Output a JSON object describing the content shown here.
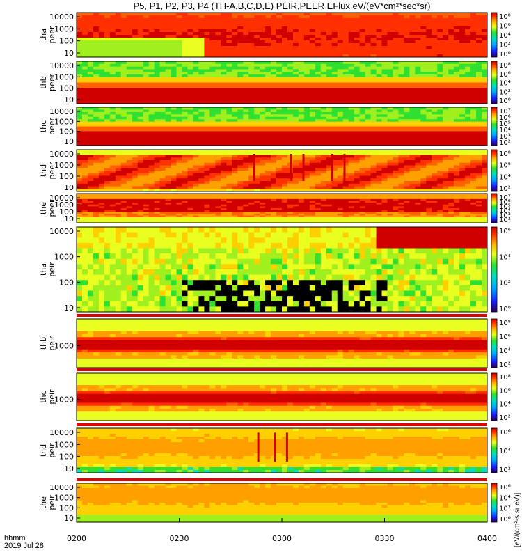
{
  "chart_data": {
    "type": "heatmap",
    "title": "P5, P1, P2, P3, P4 (TH-A,B,C,D,E) PEIR,PEER EFlux eV/(eV*cm²*sec*sr)",
    "x_tick_labels": [
      "0200",
      "0230",
      "0300",
      "0330",
      "0400"
    ],
    "x_range_hhmm": [
      "0200",
      "0400"
    ],
    "x_label_line1": "hhmm",
    "x_label_line2": "2019 Jul 28",
    "colorbar_unit": "[eV/(cm²-s sr eV)]",
    "panels": [
      {
        "id": "tha_peer",
        "line1": "tha",
        "line2": "peer",
        "yticks": [
          "10000",
          "1000",
          "100",
          "10"
        ],
        "cbar_ticks": [
          "10⁸",
          "10⁶",
          "10⁴",
          "10²",
          "10⁰"
        ],
        "profile": "hot_uniform"
      },
      {
        "id": "thb_peer",
        "line1": "thb",
        "line2": "peer",
        "yticks": [
          "10000",
          "1000",
          "100",
          "10"
        ],
        "cbar_ticks": [
          "10⁸",
          "10⁶",
          "10⁴",
          "10²",
          "10⁰"
        ],
        "profile": "banded"
      },
      {
        "id": "thc_peer",
        "line1": "thc",
        "line2": "peer",
        "yticks": [
          "10000",
          "1000",
          "100",
          "10"
        ],
        "cbar_ticks": [
          "10⁷",
          "10⁶",
          "10⁵",
          "10⁴",
          "10³",
          "10²"
        ],
        "profile": "banded"
      },
      {
        "id": "thd_peer",
        "line1": "thd",
        "line2": "peer",
        "yticks": [
          "10000",
          "1000",
          "100",
          "10"
        ],
        "cbar_ticks": [
          "10⁸",
          "10⁶",
          "10⁴",
          "10²"
        ],
        "profile": "spiky_hot"
      },
      {
        "id": "the_peer",
        "line1": "the",
        "line2": "peer",
        "yticks": [
          "10000",
          "1000",
          "100",
          "10"
        ],
        "cbar_ticks": [
          "10⁷",
          "10⁶",
          "10⁵",
          "10⁴",
          "10³",
          "10²"
        ],
        "profile": "hot_band"
      },
      {
        "id": "tha_peir",
        "line1": "tha",
        "line2": "peir",
        "yticks": [
          "10000",
          "1000",
          "100",
          "10"
        ],
        "cbar_ticks": [
          "10⁶",
          "10⁴",
          "10²",
          "10⁰"
        ],
        "profile": "noisy"
      },
      {
        "id": "thb_peir",
        "line1": "thb",
        "line2": "peir",
        "yticks": [
          "1000"
        ],
        "cbar_ticks": [
          "10⁸",
          "10⁶",
          "10⁴",
          "10²"
        ],
        "profile": "center_band"
      },
      {
        "id": "thc_peir",
        "line1": "thc",
        "line2": "peir",
        "yticks": [
          "1000"
        ],
        "cbar_ticks": [
          "10⁸",
          "10⁶",
          "10⁴",
          "10²"
        ],
        "profile": "center_band"
      },
      {
        "id": "thd_peir",
        "line1": "thd",
        "line2": "peir",
        "yticks": [
          "10000",
          "1000",
          "100",
          "10"
        ],
        "cbar_ticks": [
          "10⁶",
          "10⁴",
          "10²"
        ],
        "profile": "spiky_low"
      },
      {
        "id": "the_peir",
        "line1": "the",
        "line2": "peir",
        "yticks": [
          "10000",
          "1000",
          "100",
          "10"
        ],
        "cbar_ticks": [
          "10⁶",
          "10⁴",
          "10²",
          "10⁰"
        ],
        "profile": "warm_uniform"
      }
    ]
  }
}
